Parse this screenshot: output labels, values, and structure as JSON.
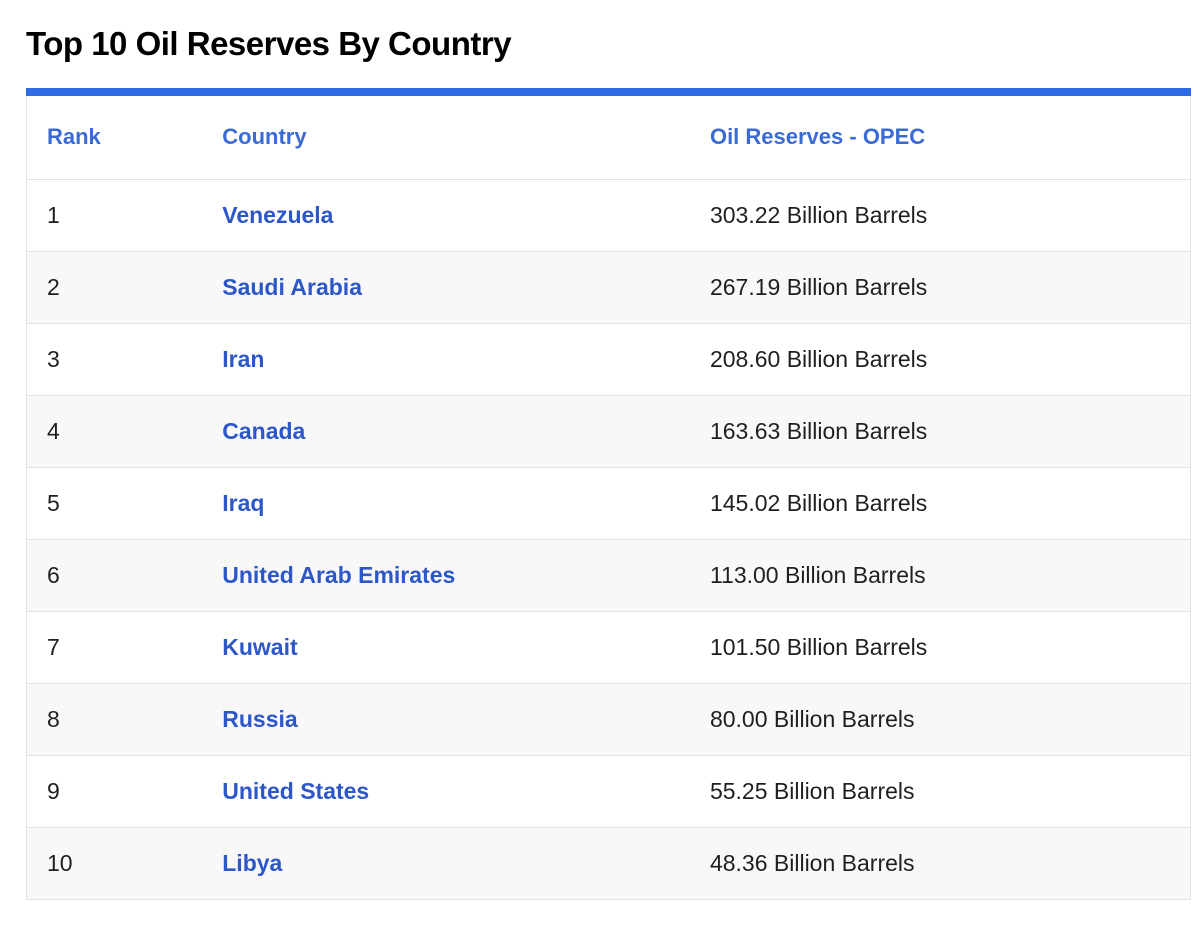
{
  "page_title": "Top 10 Oil Reserves By Country",
  "table": {
    "columns": [
      "Rank",
      "Country",
      "Oil Reserves - OPEC"
    ],
    "rows": [
      {
        "rank": "1",
        "country": "Venezuela",
        "reserves": "303.22 Billion Barrels"
      },
      {
        "rank": "2",
        "country": "Saudi Arabia",
        "reserves": "267.19 Billion Barrels"
      },
      {
        "rank": "3",
        "country": "Iran",
        "reserves": "208.60 Billion Barrels"
      },
      {
        "rank": "4",
        "country": "Canada",
        "reserves": "163.63 Billion Barrels"
      },
      {
        "rank": "5",
        "country": "Iraq",
        "reserves": "145.02 Billion Barrels"
      },
      {
        "rank": "6",
        "country": "United Arab Emirates",
        "reserves": "113.00 Billion Barrels"
      },
      {
        "rank": "7",
        "country": "Kuwait",
        "reserves": "101.50 Billion Barrels"
      },
      {
        "rank": "8",
        "country": "Russia",
        "reserves": "80.00 Billion Barrels"
      },
      {
        "rank": "9",
        "country": "United States",
        "reserves": "55.25 Billion Barrels"
      },
      {
        "rank": "10",
        "country": "Libya",
        "reserves": "48.36 Billion Barrels"
      }
    ]
  },
  "colors": {
    "accent_bar": "#2e6be4",
    "header_link_text": "#3a6ad4",
    "country_link_text": "#2d56c8",
    "alt_row_background": "#f8f8f8",
    "row_border": "#e2e2e2",
    "title_text": "#000000",
    "value_text": "#1f1f1f"
  },
  "chart_data": {
    "type": "table",
    "title": "Top 10 Oil Reserves By Country",
    "columns": [
      "Rank",
      "Country",
      "Oil Reserves - OPEC"
    ],
    "unit": "Billion Barrels",
    "categories": [
      "Venezuela",
      "Saudi Arabia",
      "Iran",
      "Canada",
      "Iraq",
      "United Arab Emirates",
      "Kuwait",
      "Russia",
      "United States",
      "Libya"
    ],
    "values": [
      303.22,
      267.19,
      208.6,
      163.63,
      145.02,
      113.0,
      101.5,
      80.0,
      55.25,
      48.36
    ]
  }
}
